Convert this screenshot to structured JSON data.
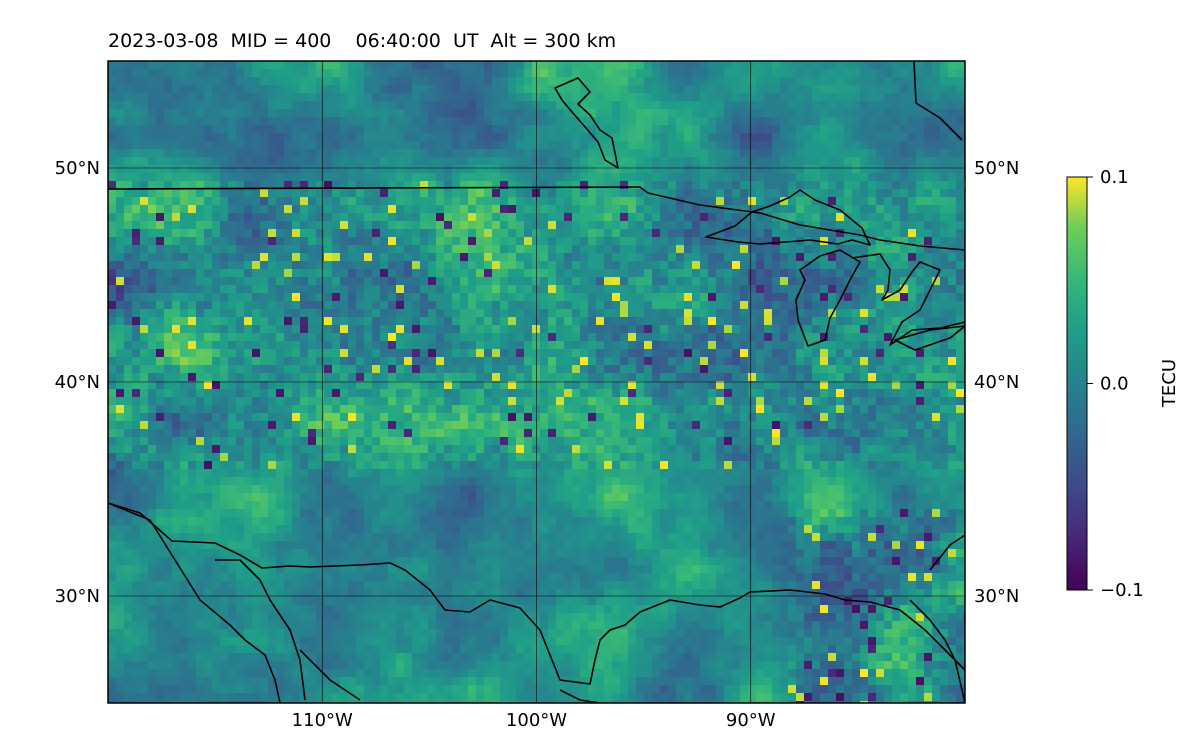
{
  "title": "2023-03-08  MID = 400    06:40:00  UT  Alt = 300 km",
  "map": {
    "lon_range": [
      -120,
      -80
    ],
    "lat_range": [
      25,
      55
    ],
    "lat_ticks": [
      {
        "value": 50,
        "label": "50°N"
      },
      {
        "value": 40,
        "label": "40°N"
      },
      {
        "value": 30,
        "label": "30°N"
      }
    ],
    "lon_ticks": [
      {
        "value": -110,
        "label": "110°W"
      },
      {
        "value": -100,
        "label": "100°W"
      },
      {
        "value": -90,
        "label": "90°W"
      }
    ],
    "grid": true,
    "colormap": "viridis",
    "coastline_color": "#000000"
  },
  "colorbar": {
    "label": "TECU",
    "min": -0.1,
    "max": 0.1,
    "ticks": [
      {
        "value": 0.1,
        "label": "0.1"
      },
      {
        "value": 0.0,
        "label": "0.0"
      },
      {
        "value": -0.1,
        "label": "−0.1"
      }
    ]
  }
}
